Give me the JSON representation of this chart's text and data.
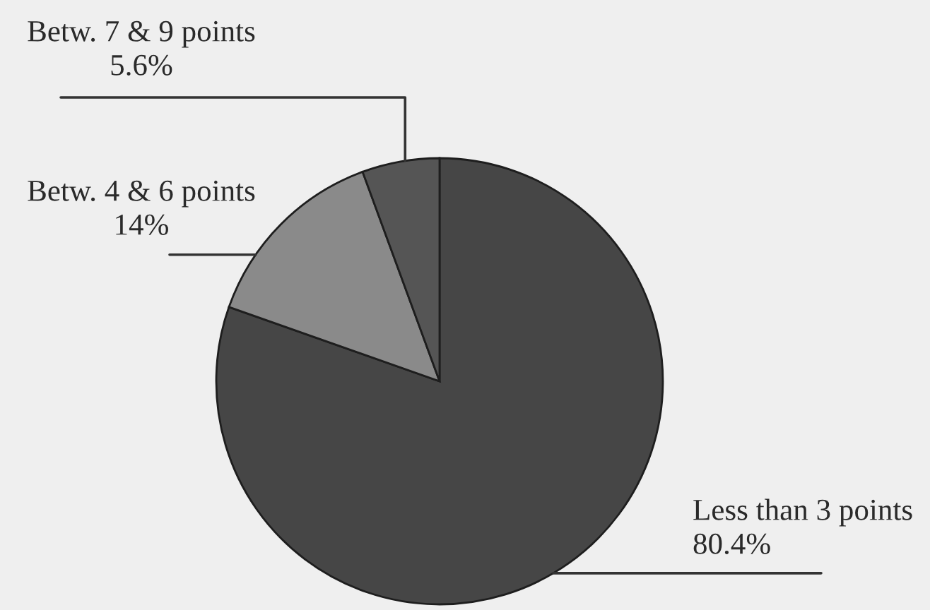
{
  "chart_data": {
    "type": "pie",
    "categories": [
      "Less than 3 points",
      "Betw. 4 & 6 points",
      "Betw. 7 & 9 points"
    ],
    "values": [
      80.4,
      14,
      5.6
    ],
    "value_labels": [
      "80.4%",
      "14%",
      "5.6%"
    ],
    "colors": [
      "#464646",
      "#8a8a8a",
      "#555555"
    ]
  }
}
